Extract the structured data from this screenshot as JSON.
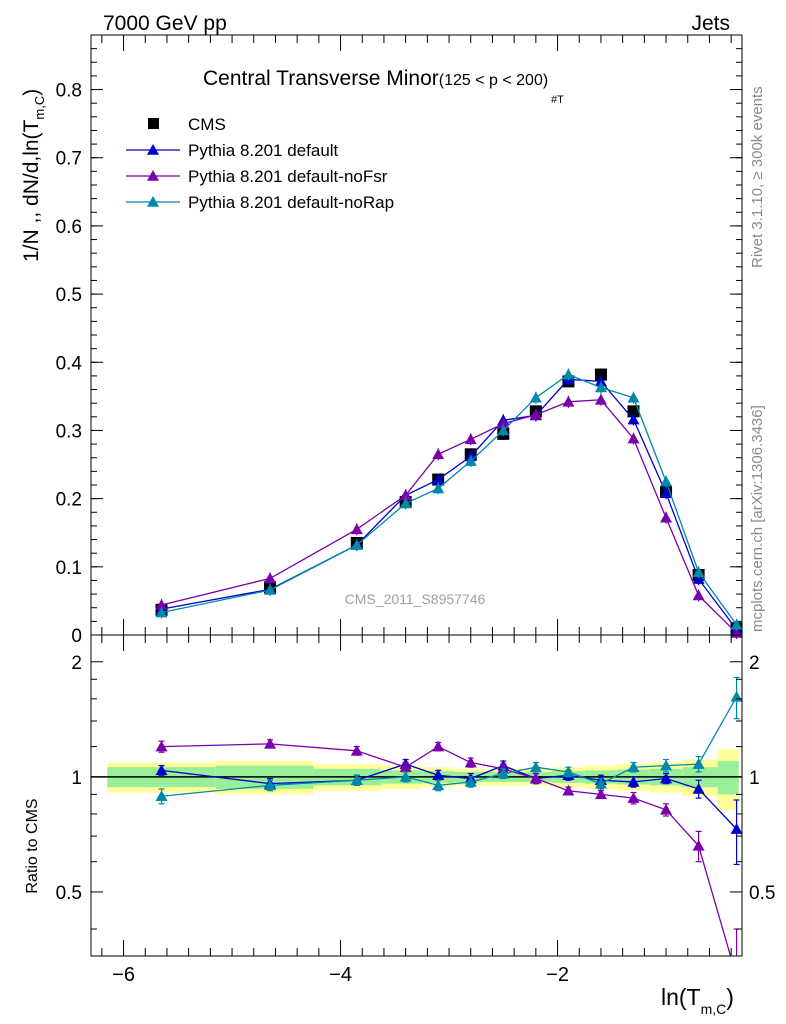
{
  "header": {
    "left": "7000 GeV pp",
    "right": "Jets"
  },
  "side_notes": {
    "rivet": "Rivet 3.1.10, ≥ 300k events",
    "mcplots": "mcplots.cern.ch [arXiv:1306.3436]"
  },
  "chart_data": [
    {
      "type": "scatter",
      "title_main": "Central Transverse Minor",
      "title_sub": "(125 < p   < 200)",
      "title_sub_index": "#T",
      "watermark": "CMS_2011_S8957746",
      "ylabel": "1/N ,, dN/d,ln(T",
      "ylabel_sub": "m,C",
      "ylabel_close": ")",
      "ylim": [
        0,
        0.88
      ],
      "xlim": [
        -6.3,
        -0.3
      ],
      "yticks": [
        0,
        0.1,
        0.2,
        0.3,
        0.4,
        0.5,
        0.6,
        0.7,
        0.8
      ],
      "ytick_labels": [
        "0",
        "0.1",
        "0.2",
        "0.3",
        "0.4",
        "0.5",
        "0.6",
        "0.7",
        "0.8"
      ],
      "legend_position": "top-left",
      "x": [
        -5.65,
        -4.65,
        -3.85,
        -3.4,
        -3.1,
        -2.8,
        -2.5,
        -2.2,
        -1.9,
        -1.6,
        -1.3,
        -1.0,
        -0.7,
        -0.35
      ],
      "series": [
        {
          "name": "CMS",
          "color": "#000000",
          "marker": "square",
          "values": [
            0.037,
            0.07,
            0.135,
            0.195,
            0.228,
            0.265,
            0.295,
            0.328,
            0.372,
            0.382,
            0.328,
            0.21,
            0.088,
            0.01
          ]
        },
        {
          "name": "Pythia 8.201 default",
          "color": "#0000cc",
          "marker": "triangle",
          "values": [
            0.038,
            0.067,
            0.132,
            0.205,
            0.228,
            0.262,
            0.315,
            0.322,
            0.375,
            0.372,
            0.316,
            0.208,
            0.082,
            0.008
          ]
        },
        {
          "name": "Pythia 8.201 default-noFsr",
          "color": "#7a00aa",
          "marker": "triangle",
          "values": [
            0.044,
            0.083,
            0.155,
            0.205,
            0.265,
            0.287,
            0.31,
            0.323,
            0.342,
            0.345,
            0.288,
            0.172,
            0.058,
            0.003
          ]
        },
        {
          "name": "Pythia 8.201 default-noRap",
          "color": "#0088aa",
          "marker": "triangle",
          "values": [
            0.033,
            0.066,
            0.132,
            0.193,
            0.215,
            0.255,
            0.3,
            0.348,
            0.382,
            0.363,
            0.348,
            0.225,
            0.092,
            0.015
          ]
        }
      ]
    },
    {
      "type": "scatter",
      "ylabel": "Ratio to CMS",
      "xlabel": "ln(T",
      "xlabel_sub": "m,C",
      "xlabel_close": ")",
      "xlim": [
        -6.3,
        -0.3
      ],
      "ylim": [
        0.34,
        2.35
      ],
      "xticks": [
        -6,
        -4,
        -2
      ],
      "xtick_labels": [
        "−6",
        "−4",
        "−2"
      ],
      "yticks": [
        0.5,
        1,
        2
      ],
      "ytick_labels": [
        "0.5",
        "1",
        "2"
      ],
      "x": [
        -5.65,
        -4.65,
        -3.85,
        -3.4,
        -3.1,
        -2.8,
        -2.5,
        -2.2,
        -1.9,
        -1.6,
        -1.3,
        -1.0,
        -0.7,
        -0.35
      ],
      "series": [
        {
          "name": "Pythia 8.201 default",
          "color": "#0000cc",
          "values": [
            1.04,
            0.96,
            0.98,
            1.08,
            1.01,
            0.99,
            1.07,
            0.99,
            1.01,
            0.98,
            0.97,
            0.99,
            0.93,
            0.73
          ],
          "errors": [
            0.03,
            0.03,
            0.03,
            0.03,
            0.03,
            0.03,
            0.03,
            0.03,
            0.03,
            0.03,
            0.03,
            0.03,
            0.05,
            0.14
          ]
        },
        {
          "name": "Pythia 8.201 default-noFsr",
          "color": "#7a00aa",
          "values": [
            1.2,
            1.22,
            1.17,
            1.06,
            1.2,
            1.09,
            1.05,
            0.99,
            0.92,
            0.9,
            0.88,
            0.82,
            0.66,
            0.3
          ],
          "errors": [
            0.04,
            0.03,
            0.03,
            0.03,
            0.03,
            0.03,
            0.03,
            0.03,
            0.02,
            0.02,
            0.03,
            0.03,
            0.06,
            0.1
          ]
        },
        {
          "name": "Pythia 8.201 default-noRap",
          "color": "#0088aa",
          "values": [
            0.89,
            0.95,
            0.98,
            1.0,
            0.95,
            0.97,
            1.02,
            1.06,
            1.03,
            0.96,
            1.06,
            1.07,
            1.08,
            1.62
          ],
          "errors": [
            0.04,
            0.03,
            0.03,
            0.03,
            0.03,
            0.03,
            0.03,
            0.03,
            0.03,
            0.03,
            0.03,
            0.04,
            0.05,
            0.2
          ]
        }
      ],
      "bands": {
        "green": [
          0.06,
          0.07,
          0.05,
          0.04,
          0.035,
          0.03,
          0.03,
          0.03,
          0.035,
          0.04,
          0.045,
          0.05,
          0.06,
          0.1
        ],
        "yellow": [
          0.09,
          0.1,
          0.08,
          0.07,
          0.06,
          0.05,
          0.05,
          0.05,
          0.06,
          0.07,
          0.08,
          0.09,
          0.11,
          0.18
        ],
        "green_color": "#99ee99",
        "yellow_color": "#ffff99"
      }
    }
  ]
}
